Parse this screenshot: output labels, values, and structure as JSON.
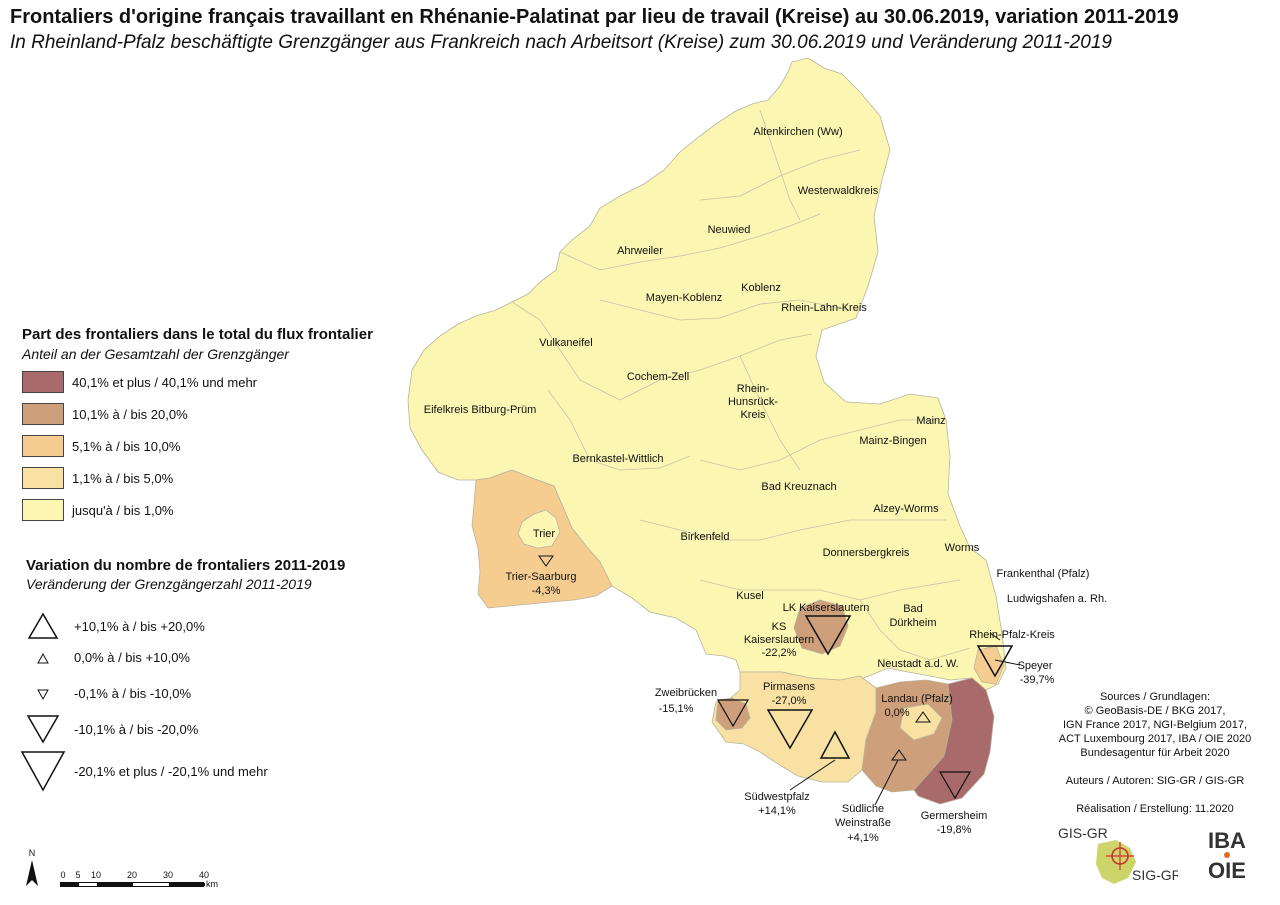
{
  "title": {
    "fr": "Frontaliers d'origine français travaillant en Rhénanie-Palatinat par lieu de travail (Kreise) au 30.06.2019, variation 2011-2019",
    "de": "In Rheinland-Pfalz beschäftigte Grenzgänger aus Frankreich nach Arbeitsort (Kreise) zum 30.06.2019 und Veränderung 2011-2019"
  },
  "colors": {
    "c40": "#a86a6a",
    "c10": "#cd9f7a",
    "c5": "#f6cd91",
    "c1": "#f8e1a3",
    "c0": "#fbf6b2"
  },
  "legend_share": {
    "title_fr": "Part des frontaliers dans le total du flux frontalier",
    "title_de": "Anteil an der Gesamtzahl der Grenzgänger",
    "items": [
      {
        "label": "40,1% et plus / 40,1% und mehr",
        "color": "#a86a6a"
      },
      {
        "label": "10,1% à / bis 20,0%",
        "color": "#cd9f7a"
      },
      {
        "label": "5,1% à / bis 10,0%",
        "color": "#f6cd91"
      },
      {
        "label": "1,1% à / bis 5,0%",
        "color": "#f8e1a3"
      },
      {
        "label": "jusqu'à / bis 1,0%",
        "color": "#fbf6b2"
      }
    ]
  },
  "legend_change": {
    "title_fr": "Variation du nombre de frontaliers 2011-2019",
    "title_de": "Veränderung der Grenzgängerzahl 2011-2019",
    "items": [
      {
        "label": "+10,1% à / bis +20,0%"
      },
      {
        "label": "0,0% à / bis +10,0%"
      },
      {
        "label": "-0,1% à / bis -10,0%"
      },
      {
        "label": "-10,1% à / bis -20,0%"
      },
      {
        "label": "-20,1% et plus / -20,1% und mehr"
      }
    ]
  },
  "districts": {
    "altenkirchen": "Altenkirchen (Ww)",
    "westerwaldkreis": "Westerwaldkreis",
    "neuwied": "Neuwied",
    "ahrweiler": "Ahrweiler",
    "koblenz": "Koblenz",
    "mayen_koblenz": "Mayen-Koblenz",
    "rhein_lahn": "Rhein-Lahn-Kreis",
    "vulkaneifel": "Vulkaneifel",
    "cochem_zell": "Cochem-Zell",
    "rhein_hunsrueck_1": "Rhein-",
    "rhein_hunsrueck_2": "Hunsrück-",
    "rhein_hunsrueck_3": "Kreis",
    "mainz": "Mainz",
    "mainz_bingen": "Mainz-Bingen",
    "eifelkreis": "Eifelkreis Bitburg-Prüm",
    "bernkastel": "Bernkastel-Wittlich",
    "bad_kreuznach": "Bad Kreuznach",
    "alzey_worms": "Alzey-Worms",
    "trier": "Trier",
    "birkenfeld": "Birkenfeld",
    "donnersberg": "Donnersbergkreis",
    "worms": "Worms",
    "frankenthal": "Frankenthal (Pfalz)",
    "trier_saarburg": "Trier-Saarburg",
    "trier_saarburg_val": "-4,3%",
    "kusel": "Kusel",
    "lk_kaiserslautern": "LK Kaiserslautern",
    "bad_duerkheim_1": "Bad",
    "bad_duerkheim_2": "Dürkheim",
    "ludwigshafen": "Ludwigshafen a. Rh.",
    "ks_1": "KS",
    "ks_2": "Kaiserslautern",
    "ks_val": "-22,2%",
    "rhein_pfalz": "Rhein-Pfalz-Kreis",
    "neustadt": "Neustadt a.d. W.",
    "speyer": "Speyer",
    "speyer_val": "-39,7%",
    "zweibruecken": "Zweibrücken",
    "zweibruecken_val": "-15,1%",
    "pirmasens": "Pirmasens",
    "pirmasens_val": "-27,0%",
    "landau": "Landau (Pfalz)",
    "landau_val": "0,0%",
    "suedwestpfalz": "Südwestpfalz",
    "suedwestpfalz_val": "+14,1%",
    "suedliche_1": "Südliche",
    "suedliche_2": "Weinstraße",
    "suedliche_val": "+4,1%",
    "germersheim": "Germersheim",
    "germersheim_val": "-19,8%"
  },
  "sources": {
    "lines": [
      "Sources / Grundlagen:",
      "© GeoBasis-DE / BKG 2017,",
      "IGN France 2017, NGI-Belgium 2017,",
      "ACT Luxembourg 2017, IBA / OIE 2020",
      "Bundesagentur für Arbeit 2020"
    ],
    "authors": "Auteurs / Autoren: SIG-GR / GIS-GR",
    "realisation": "Réalisation / Erstellung: 11.2020"
  },
  "logos": {
    "gis_gr": "GIS-GR",
    "sig_gr": "SIG-GR",
    "iba": "IBA",
    "oie": "OIE"
  },
  "scale": {
    "north": "N",
    "ticks": [
      "0",
      "5",
      "10",
      "20",
      "30",
      "40"
    ],
    "unit": "km"
  }
}
